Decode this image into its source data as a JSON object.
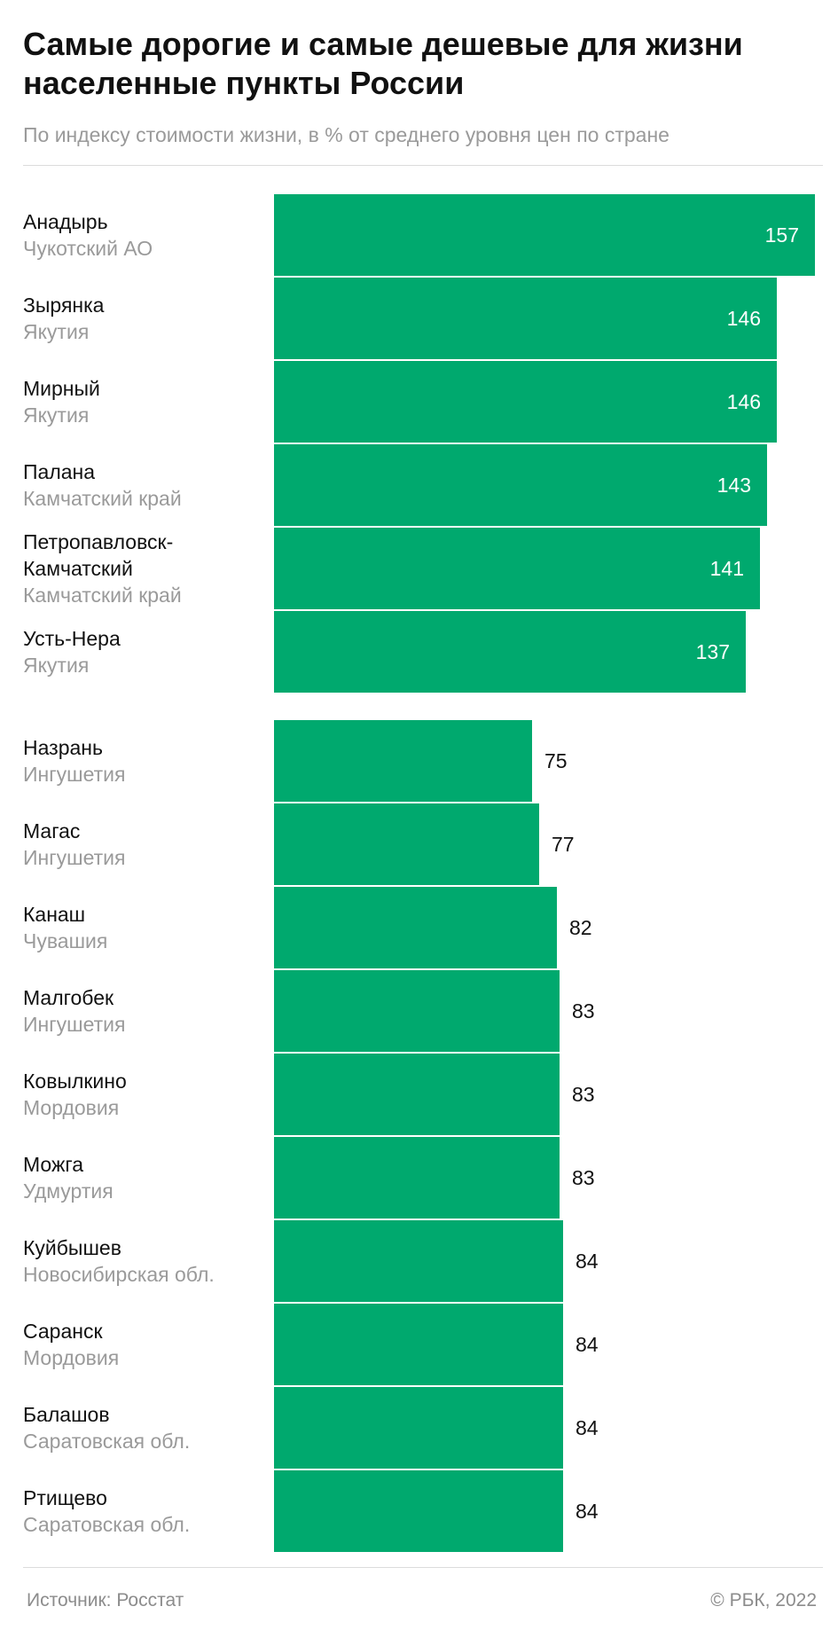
{
  "header": {
    "title_line1": "Самые дорогие и самые дешевые для жизни",
    "title_line2": "населенные пункты России",
    "subtitle": "По индексу стоимости жизни, в % от среднего уровня цен по стране"
  },
  "chart_data": {
    "type": "bar",
    "orientation": "horizontal",
    "title": "Самые дорогие и самые дешевые для жизни населенные пункты России",
    "subtitle": "По индексу стоимости жизни, в % от среднего уровня цен по стране",
    "bar_color": "#00a96e",
    "groups": [
      {
        "name": "most_expensive",
        "rows": [
          {
            "city": "Анадырь",
            "region": "Чукотский АО",
            "value": 157
          },
          {
            "city": "Зырянка",
            "region": "Якутия",
            "value": 146
          },
          {
            "city": "Мирный",
            "region": "Якутия",
            "value": 146
          },
          {
            "city": "Палана",
            "region": "Камчатский край",
            "value": 143
          },
          {
            "city": "Петропавловск-",
            "city2": "Камчатский",
            "region": "Камчатский край",
            "value": 141
          },
          {
            "city": "Усть-Нера",
            "region": "Якутия",
            "value": 137
          }
        ]
      },
      {
        "name": "cheapest",
        "rows": [
          {
            "city": "Назрань",
            "region": "Ингушетия",
            "value": 75
          },
          {
            "city": "Магас",
            "region": "Ингушетия",
            "value": 77
          },
          {
            "city": "Канаш",
            "region": "Чувашия",
            "value": 82
          },
          {
            "city": "Малгобек",
            "region": "Ингушетия",
            "value": 83
          },
          {
            "city": "Ковылкино",
            "region": "Мордовия",
            "value": 83
          },
          {
            "city": "Можга",
            "region": "Удмуртия",
            "value": 83
          },
          {
            "city": "Куйбышев",
            "region": "Новосибирская обл.",
            "value": 84
          },
          {
            "city": "Саранск",
            "region": "Мордовия",
            "value": 84
          },
          {
            "city": "Балашов",
            "region": "Саратовская обл.",
            "value": 84
          },
          {
            "city": "Ртищево",
            "region": "Саратовская обл.",
            "value": 84
          }
        ]
      }
    ]
  },
  "footer": {
    "source": "Источник: Росстат",
    "copyright": "©  РБК, 2022"
  }
}
